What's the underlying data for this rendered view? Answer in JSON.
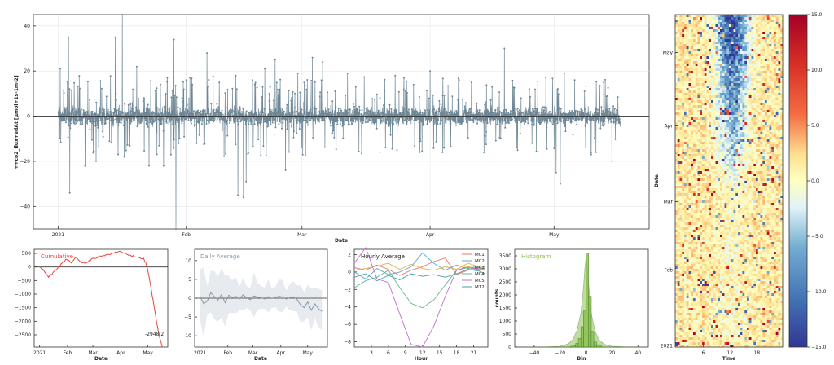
{
  "colors": {
    "main_series": "#6e8796",
    "cumulative": "#e8453c",
    "daily": "#8899a6",
    "histogram": "#8cc152",
    "histogram_edge": "#3a6b1a"
  },
  "chart_data": [
    {
      "type": "line",
      "name": "main-timeseries",
      "ylabel": "++co2_flux+edAt  [μmol+1s-1m-2]",
      "xlabel": "Date",
      "x_ticks": [
        "2021",
        "Feb",
        "Mar",
        "Apr",
        "May"
      ],
      "x_tick_days": [
        0,
        31,
        59,
        90,
        120
      ],
      "y_ticks": [
        "40",
        "20",
        "0",
        "−20",
        "−40"
      ],
      "y_tick_values": [
        40,
        20,
        0,
        -20,
        -40
      ],
      "ylim": [
        -50,
        45
      ],
      "xlim_days": [
        -6,
        143
      ],
      "series_days_range": [
        0,
        136
      ],
      "spikes": [
        {
          "day": 0.5,
          "v": 21
        },
        {
          "day": 2.2,
          "v": 30
        },
        {
          "day": 2.5,
          "v": 35
        },
        {
          "day": 2.8,
          "v": -34
        },
        {
          "day": 6.5,
          "v": -22
        },
        {
          "day": 9.2,
          "v": -20
        },
        {
          "day": 13.8,
          "v": 35
        },
        {
          "day": 15.5,
          "v": 45
        },
        {
          "day": 14.5,
          "v": -17
        },
        {
          "day": 16,
          "v": -18
        },
        {
          "day": 19,
          "v": 22
        },
        {
          "day": 22,
          "v": -22
        },
        {
          "day": 25.5,
          "v": -22
        },
        {
          "day": 28,
          "v": 34
        },
        {
          "day": 28.5,
          "v": -50
        },
        {
          "day": 31,
          "v": 16
        },
        {
          "day": 32.5,
          "v": 19
        },
        {
          "day": 33.5,
          "v": -12
        },
        {
          "day": 36,
          "v": 28
        },
        {
          "day": 39,
          "v": 15
        },
        {
          "day": 43,
          "v": 18
        },
        {
          "day": 43.5,
          "v": -35
        },
        {
          "day": 44.8,
          "v": -36
        },
        {
          "day": 45.5,
          "v": -29
        },
        {
          "day": 46,
          "v": -36
        },
        {
          "day": 47,
          "v": 16
        },
        {
          "day": 50,
          "v": 21
        },
        {
          "day": 52.5,
          "v": 25
        },
        {
          "day": 55,
          "v": -24
        },
        {
          "day": 58,
          "v": 19
        },
        {
          "day": 61.5,
          "v": 26
        },
        {
          "day": 64,
          "v": 24
        },
        {
          "day": 67,
          "v": -17
        },
        {
          "day": 70,
          "v": 19
        },
        {
          "day": 72,
          "v": 13
        },
        {
          "day": 76,
          "v": 25
        },
        {
          "day": 79,
          "v": 11
        },
        {
          "day": 82,
          "v": -15
        },
        {
          "day": 86,
          "v": 14
        },
        {
          "day": 90,
          "v": 20
        },
        {
          "day": 93,
          "v": -16
        },
        {
          "day": 97,
          "v": 16
        },
        {
          "day": 100,
          "v": 15
        },
        {
          "day": 105,
          "v": 13
        },
        {
          "day": 108,
          "v": 30
        },
        {
          "day": 111,
          "v": -14
        },
        {
          "day": 114,
          "v": 12
        },
        {
          "day": 118,
          "v": 17
        },
        {
          "day": 120.5,
          "v": -25
        },
        {
          "day": 121.5,
          "v": -30
        },
        {
          "day": 122.5,
          "v": 19
        },
        {
          "day": 125,
          "v": 16
        },
        {
          "day": 129,
          "v": -17
        },
        {
          "day": 132,
          "v": 15
        },
        {
          "day": 134,
          "v": -20
        }
      ]
    },
    {
      "type": "line",
      "name": "cumulative",
      "title": "Cumulative",
      "xlabel": "Date",
      "x_ticks": [
        "2021",
        "Feb",
        "Mar",
        "Apr",
        "May"
      ],
      "y_ticks": [
        "500",
        "0",
        "−500",
        "−1000",
        "−1500",
        "−2000",
        "−2500"
      ],
      "y_tick_values": [
        500,
        0,
        -500,
        -1000,
        -1500,
        -2000,
        -2500
      ],
      "ylim": [
        -2950,
        650
      ],
      "annotation": "-2948.2",
      "days": [
        0,
        5,
        10,
        15,
        20,
        25,
        30,
        35,
        40,
        45,
        50,
        55,
        60,
        65,
        70,
        75,
        80,
        85,
        90,
        95,
        100,
        105,
        110,
        115,
        118,
        121,
        124,
        127,
        130,
        133,
        136
      ],
      "values": [
        0,
        -150,
        -380,
        -200,
        -50,
        150,
        280,
        150,
        360,
        200,
        140,
        240,
        320,
        380,
        420,
        470,
        500,
        530,
        560,
        520,
        440,
        380,
        350,
        330,
        120,
        -300,
        -900,
        -1500,
        -2100,
        -2600,
        -2948
      ]
    },
    {
      "type": "line",
      "name": "daily-average",
      "title": "Daily Average",
      "xlabel": "Date",
      "x_ticks": [
        "2021",
        "Feb",
        "Mar",
        "Apr",
        "May"
      ],
      "y_ticks": [
        "10",
        "5",
        "0",
        "−5",
        "−10"
      ],
      "y_tick_values": [
        10,
        5,
        0,
        -5,
        -10
      ],
      "ylim": [
        -13,
        13
      ],
      "days": [
        0,
        4,
        8,
        12,
        16,
        20,
        24,
        28,
        32,
        36,
        40,
        44,
        48,
        52,
        56,
        60,
        64,
        68,
        72,
        76,
        80,
        84,
        88,
        92,
        96,
        100,
        104,
        108,
        112,
        116,
        120,
        124,
        128,
        132,
        136
      ],
      "values": [
        0.5,
        -1.5,
        -0.8,
        1.5,
        0.4,
        -0.5,
        1.0,
        -1.2,
        0.8,
        0.2,
        0.5,
        -0.2,
        0.9,
        0.1,
        -0.4,
        0.6,
        0.3,
        0.1,
        -0.2,
        0.4,
        -0.1,
        0.2,
        0.5,
        0.3,
        -0.2,
        0.1,
        0.4,
        -0.3,
        -1.8,
        -2.5,
        -1.0,
        -3.2,
        -1.5,
        -2.8,
        -3.5
      ],
      "band": [
        6,
        9,
        5,
        8,
        7,
        5,
        6,
        8,
        6,
        4,
        5,
        4,
        6,
        4,
        4,
        5,
        4,
        4,
        3,
        4,
        3,
        3,
        4,
        4,
        3,
        3,
        4,
        3,
        4,
        5,
        4,
        5,
        4,
        5,
        5
      ]
    },
    {
      "type": "line",
      "name": "hourly-average",
      "title": "Hourly Average",
      "xlabel": "Hour",
      "x_ticks": [
        "3",
        "6",
        "9",
        "12",
        "15",
        "18",
        "21"
      ],
      "x_tick_values": [
        3,
        6,
        9,
        12,
        15,
        18,
        21
      ],
      "y_ticks": [
        "2",
        "0",
        "−2",
        "−4",
        "−6",
        "−8"
      ],
      "y_tick_values": [
        2,
        0,
        -2,
        -4,
        -6,
        -8
      ],
      "ylim": [
        -8.6,
        2.6
      ],
      "xlim": [
        0,
        23.5
      ],
      "x": [
        0,
        2,
        4,
        6,
        8,
        10,
        12,
        14,
        16,
        18,
        20,
        22,
        23
      ],
      "series": [
        {
          "name": "M01",
          "color": "#e8776e",
          "values": [
            0.5,
            0.2,
            0.8,
            0.3,
            -0.4,
            0.2,
            0.6,
            1.2,
            1.6,
            -0.3,
            0.2,
            0.5,
            0.3
          ]
        },
        {
          "name": "M02",
          "color": "#5fa8d3",
          "values": [
            0.0,
            -0.8,
            0.4,
            -0.3,
            0.0,
            0.6,
            2.2,
            1.0,
            0.2,
            0.8,
            0.4,
            0.7,
            0.6
          ]
        },
        {
          "name": "M03",
          "color": "#e3b23c",
          "values": [
            0.2,
            0.4,
            0.7,
            1.0,
            0.3,
            0.9,
            0.4,
            0.2,
            0.6,
            0.3,
            1.0,
            0.6,
            0.4
          ]
        },
        {
          "name": "M04",
          "color": "#66b88b",
          "values": [
            -1.8,
            -1.0,
            -0.6,
            0.2,
            -1.8,
            -3.6,
            -4.1,
            -3.2,
            -1.5,
            0.2,
            0.5,
            0.2,
            0.4
          ]
        },
        {
          "name": "M05",
          "color": "#c070c8",
          "values": [
            1.0,
            2.8,
            -0.8,
            -1.2,
            -4.8,
            -8.3,
            -8.6,
            -6.2,
            -2.8,
            0.2,
            0.6,
            0.3,
            0.2
          ]
        },
        {
          "name": "M12",
          "color": "#4aa0a8",
          "values": [
            -0.6,
            -0.2,
            -1.0,
            -0.4,
            -0.9,
            -0.2,
            -0.5,
            -0.3,
            -0.6,
            -0.2,
            0.3,
            0.1,
            -0.2
          ]
        }
      ]
    },
    {
      "type": "bar",
      "name": "histogram",
      "title": "Histogram",
      "xlabel": "Bin",
      "ylabel": "counts",
      "x_ticks": [
        "−40",
        "−20",
        "0",
        "20",
        "40"
      ],
      "x_tick_values": [
        -40,
        -20,
        0,
        20,
        40
      ],
      "y_ticks": [
        "3500",
        "3000",
        "2500",
        "2000",
        "1500",
        "1000",
        "500",
        "0"
      ],
      "y_tick_values": [
        3500,
        3000,
        2500,
        2000,
        1500,
        1000,
        500,
        0
      ],
      "xlim": [
        -55,
        48
      ],
      "ylim": [
        0,
        3750
      ],
      "bin_edges": [
        -12,
        -10,
        -8,
        -6,
        -4,
        -2,
        0,
        2,
        4,
        6,
        8,
        10,
        12
      ],
      "values": [
        30,
        60,
        140,
        330,
        780,
        1380,
        3600,
        1950,
        600,
        230,
        90,
        40
      ],
      "kde_x": [
        -50,
        -30,
        -20,
        -14,
        -10,
        -7,
        -4,
        -2,
        -1,
        0,
        1,
        2,
        4,
        7,
        10,
        14,
        20,
        30,
        45
      ],
      "kde_y": [
        0,
        5,
        30,
        120,
        300,
        650,
        1300,
        2300,
        3000,
        3450,
        3050,
        2400,
        1300,
        600,
        280,
        110,
        30,
        5,
        0
      ]
    },
    {
      "type": "heatmap",
      "name": "heatmap",
      "xlabel": "Time",
      "ylabel": "Date",
      "x_ticks": [
        "6",
        "12",
        "18"
      ],
      "x_tick_values": [
        6,
        12,
        18
      ],
      "y_ticks": [
        "May",
        "Apr",
        "Mar",
        "Feb",
        "2021"
      ],
      "y_tick_days": [
        120,
        90,
        59,
        31,
        0
      ],
      "rows": 136,
      "cols": 48,
      "colorbar_ticks": [
        "15.0",
        "10.0",
        "5.0",
        "0.0",
        "−5.0",
        "−10.0",
        "−15.0"
      ],
      "colorbar_values": [
        15,
        10,
        5,
        0,
        -5,
        -10,
        -15
      ],
      "vmin": -15,
      "vmax": 15
    }
  ]
}
